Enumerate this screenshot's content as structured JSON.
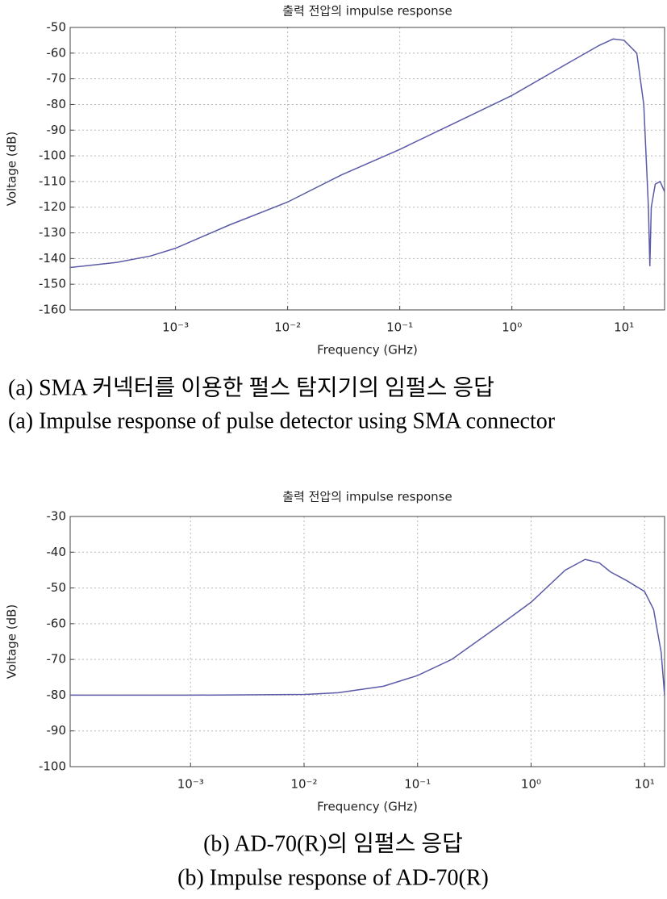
{
  "chart_data": [
    {
      "type": "line",
      "title": "출력 전압의 impulse response",
      "xlabel": "Frequency (GHz)",
      "ylabel": "Voltage (dB)",
      "captions": [
        "(a) SMA 커넥터를 이용한 펄스 탐지기의 임펄스 응답",
        "(a) Impulse response of pulse detector using SMA connector"
      ],
      "xscale": "log",
      "grid": true,
      "xlim": [
        0.000115,
        23
      ],
      "ylim": [
        -160,
        -50
      ],
      "xticks": [
        {
          "value": 0.001,
          "label": "10⁻³"
        },
        {
          "value": 0.01,
          "label": "10⁻²"
        },
        {
          "value": 0.1,
          "label": "10⁻¹"
        },
        {
          "value": 1,
          "label": "10⁰"
        },
        {
          "value": 10,
          "label": "10¹"
        }
      ],
      "yticks": [
        -50,
        -60,
        -70,
        -80,
        -90,
        -100,
        -110,
        -120,
        -130,
        -140,
        -150,
        -160
      ],
      "x": [
        0.000115,
        0.0003,
        0.0006,
        0.001,
        0.003,
        0.01,
        0.03,
        0.1,
        0.3,
        1,
        3,
        6,
        8,
        10,
        13,
        15,
        16.5,
        17,
        17.5,
        19,
        21,
        23
      ],
      "series": [
        {
          "name": "impulse response",
          "color": "#5a5aa8",
          "values": [
            -143.5,
            -141.5,
            -139,
            -136,
            -127,
            -118,
            -107.5,
            -97.5,
            -87.5,
            -76.5,
            -64.5,
            -57,
            -54.5,
            -55,
            -60,
            -80,
            -120,
            -143,
            -120,
            -111,
            -110,
            -114
          ]
        }
      ]
    },
    {
      "type": "line",
      "title": "출력 전압의 impulse response",
      "xlabel": "Frequency (GHz)",
      "ylabel": "Voltage (dB)",
      "captions": [
        "(b) AD-70(R)의 임펄스 응답",
        "(b) Impulse response of AD-70(R)"
      ],
      "xscale": "log",
      "grid": true,
      "xlim": [
        8.7e-05,
        15
      ],
      "ylim": [
        -100,
        -30
      ],
      "xticks": [
        {
          "value": 0.001,
          "label": "10⁻³"
        },
        {
          "value": 0.01,
          "label": "10⁻²"
        },
        {
          "value": 0.1,
          "label": "10⁻¹"
        },
        {
          "value": 1,
          "label": "10⁰"
        },
        {
          "value": 10,
          "label": "10¹"
        }
      ],
      "yticks": [
        -30,
        -40,
        -50,
        -60,
        -70,
        -80,
        -90,
        -100
      ],
      "x": [
        8.7e-05,
        0.001,
        0.01,
        0.02,
        0.05,
        0.1,
        0.2,
        0.5,
        1,
        2,
        3,
        4,
        5,
        7,
        10,
        12,
        14,
        15
      ],
      "series": [
        {
          "name": "impulse response",
          "color": "#5a5aa8",
          "values": [
            -80,
            -80,
            -79.8,
            -79.3,
            -77.5,
            -74.5,
            -70,
            -61,
            -54,
            -45,
            -42,
            -43,
            -45.5,
            -48,
            -51,
            -56,
            -68,
            -80
          ]
        }
      ]
    }
  ]
}
